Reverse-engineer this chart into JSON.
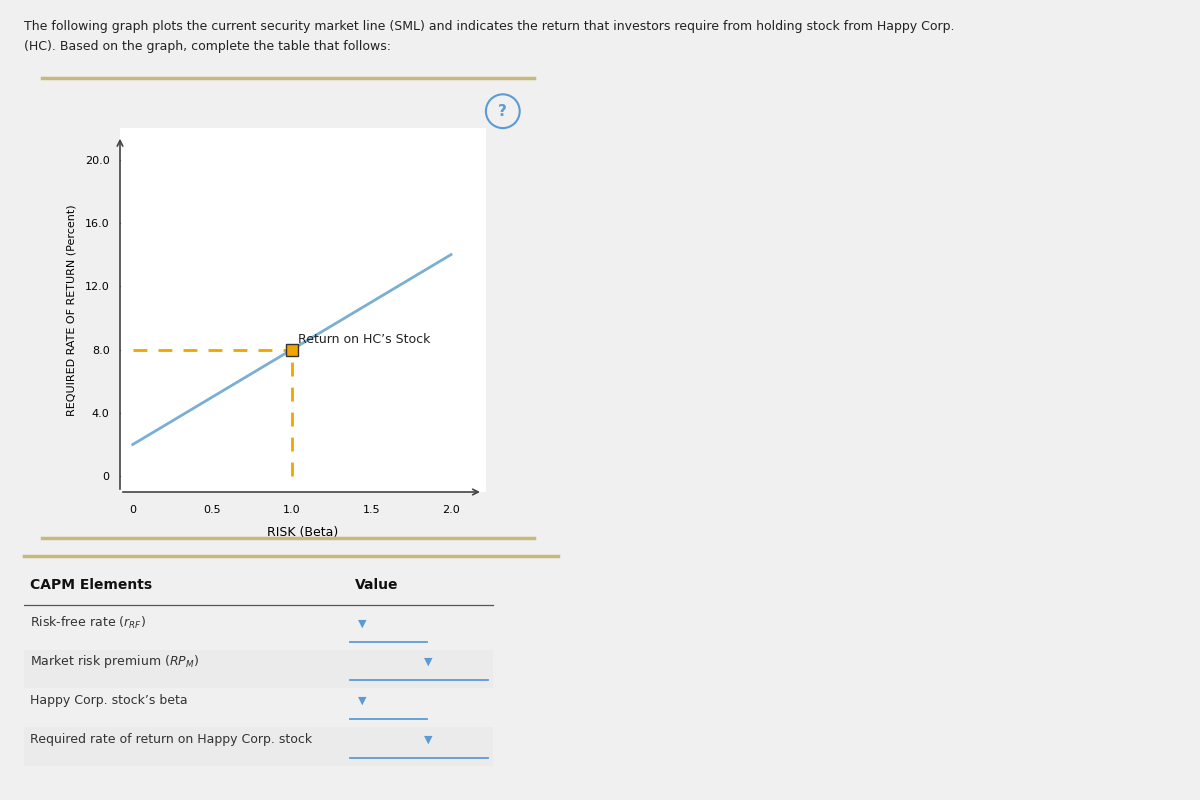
{
  "title_line1": "The following graph plots the current security market line (SML) and indicates the return that investors require from holding stock from Happy Corp.",
  "title_line2": "(HC). Based on the graph, complete the table that follows:",
  "ylabel": "REQUIRED RATE OF RETURN (Percent)",
  "xlabel": "RISK (Beta)",
  "yticks": [
    0,
    4.0,
    8.0,
    12.0,
    16.0,
    20.0
  ],
  "xticks": [
    0,
    0.5,
    1.0,
    1.5,
    2.0
  ],
  "sml_y_intercept": 2.0,
  "sml_slope": 6.0,
  "hc_beta": 1.0,
  "hc_return": 8.0,
  "sml_color": "#7aafd4",
  "dashed_color": "#f0a500",
  "marker_facecolor": "#f0a500",
  "marker_edgecolor": "#333333",
  "annotation_text": "Return on HC’s Stock",
  "annotation_fontsize": 9,
  "border_color": "#c8b87a",
  "outer_bg_color": "#f0f0f0",
  "panel_bg_color": "#ffffff",
  "question_mark_color": "#5b9bd5",
  "question_mark_text": "?",
  "capm_header_col1": "CAPM Elements",
  "capm_header_col2": "Value",
  "capm_rows": [
    "Risk-free rate (r_RF)",
    "Market risk premium (RP_M)",
    "Happy Corp. stock’s beta",
    "Required rate of return on Happy Corp. stock"
  ],
  "row_shading": [
    false,
    true,
    false,
    true
  ],
  "divider_color": "#c8b87a",
  "arrow_color": "#5b9bd5",
  "shading_color": "#ebebeb"
}
